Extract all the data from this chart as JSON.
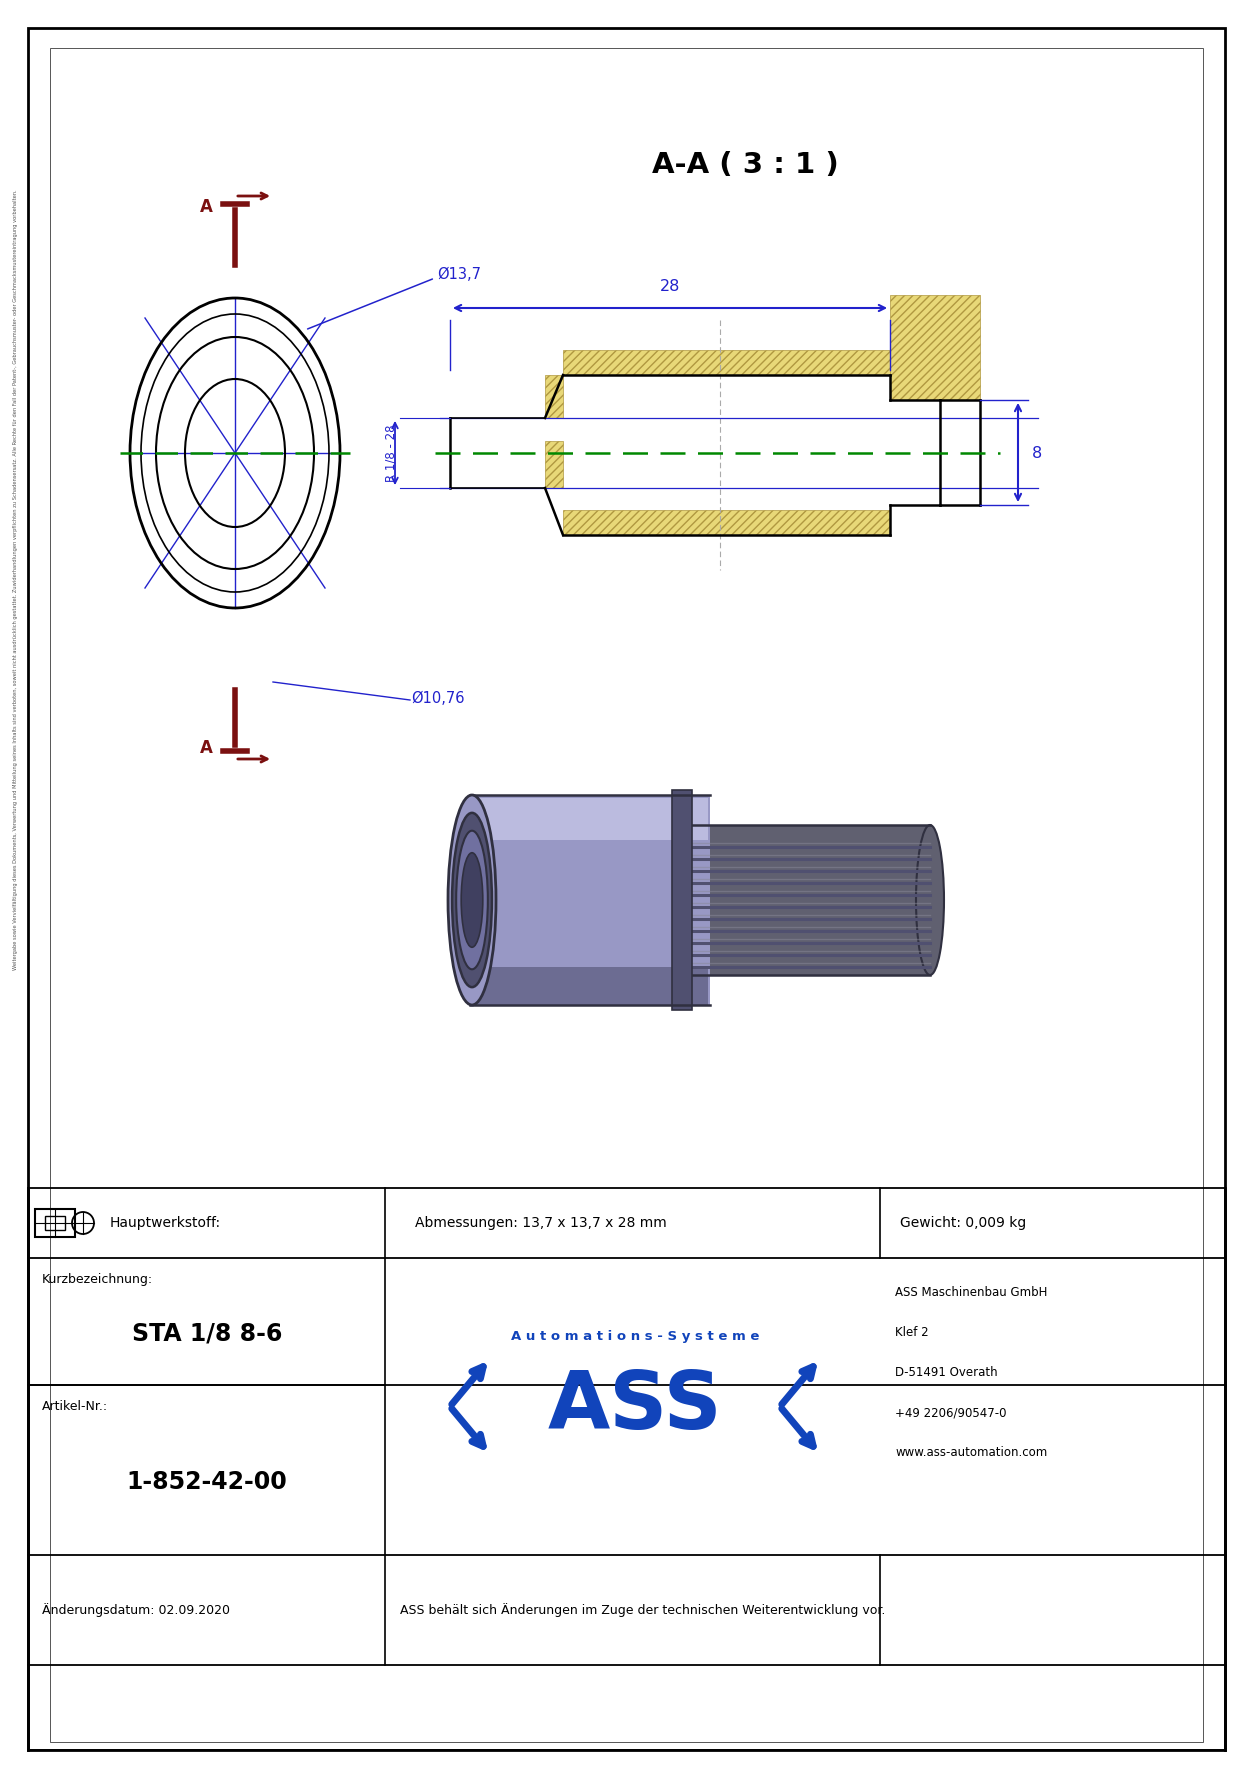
{
  "page_width": 12.53,
  "page_height": 17.72,
  "bg": "#ffffff",
  "blue": "#2222cc",
  "dkred": "#7B1010",
  "green": "#008800",
  "title_AA": "A-A ( 3 : 1 )",
  "d28": "28",
  "d8": "8",
  "dR": "R 1/8 - 28",
  "dD137": "Ø13,7",
  "dD1076": "Ø10,76",
  "hw": "Hauptwerkstoff:",
  "abm": "Abmessungen: 13,7 x 13,7 x 28 mm",
  "gew": "Gewicht: 0,009 kg",
  "kurz_lbl": "Kurzbezeichnung:",
  "kurz_val": "STA 1/8 8-6",
  "art_lbl": "Artikel-Nr.:",
  "art_val": "1-852-42-00",
  "aend_lbl": "Änderungsdatum: 02.09.2020",
  "aend_txt": "ASS behält sich Änderungen im Zuge der technischen Weiterentwicklung vor.",
  "co": [
    "ASS Maschinenbau GmbH",
    "Klef 2",
    "D-51491 Overath",
    "+49 2206/90547-0",
    "www.ass-automation.com"
  ],
  "auto": "A u t o m a t i o n s - S y s t e m e",
  "side": "Weitergabe sowie Vervielfältigung dieses Dokuments, Verwertung und Mitteilung seines Inhalts sind verboten, soweit nicht ausdrücklich gestattet. Zuwiderhandlungen verpflichten zu Schadensersatz. Alle Rechte für den Fall der Patent-, Gebrauchsmuster- oder Geschmacksmustereintragung vorbehalten."
}
